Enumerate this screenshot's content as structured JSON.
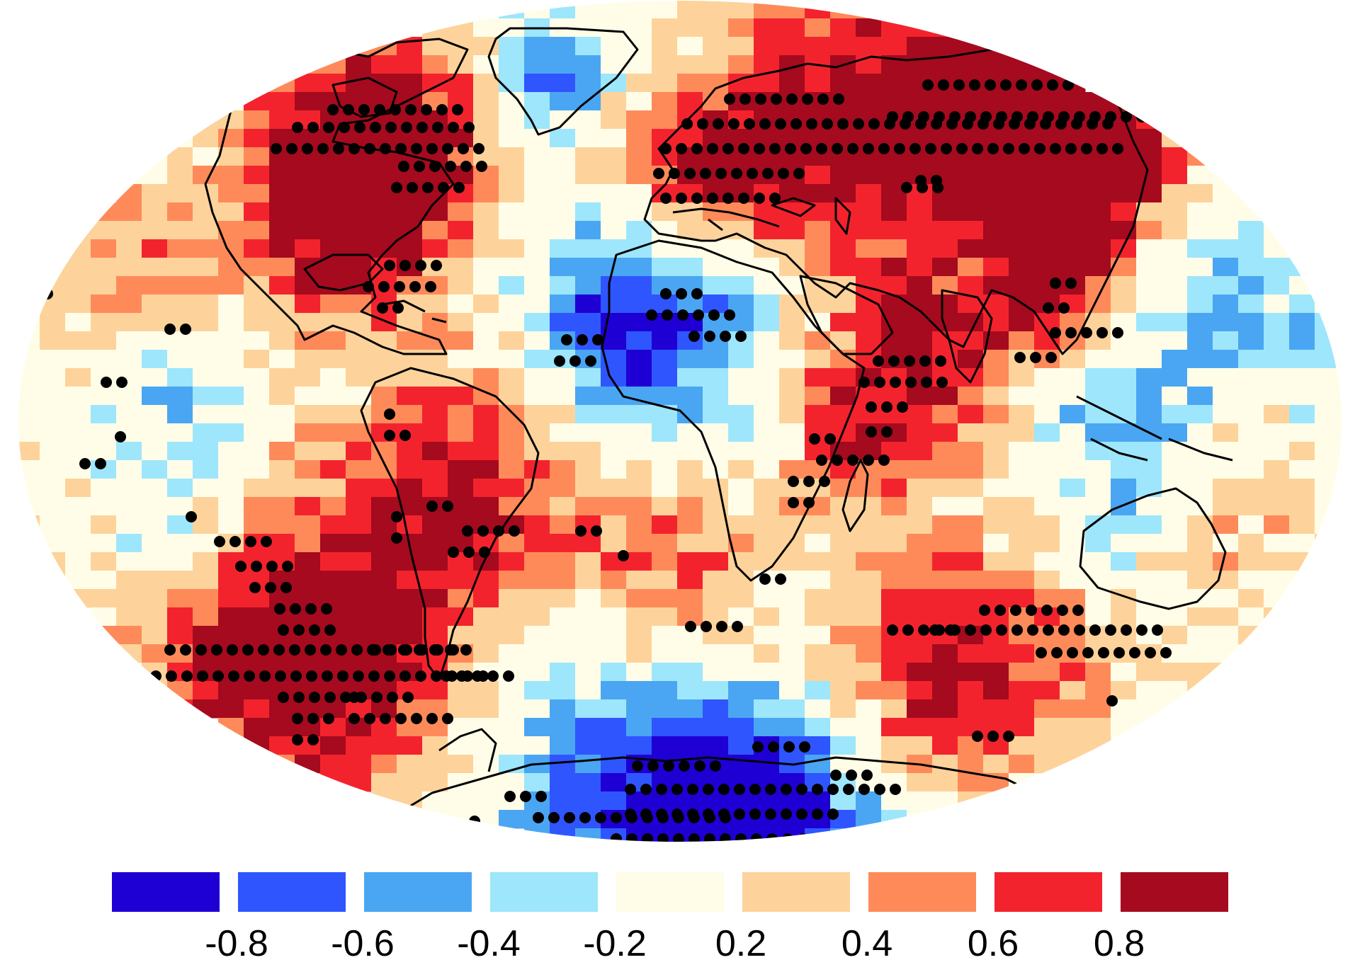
{
  "legend": {
    "colors": [
      "#1f00d4",
      "#2f55ff",
      "#4aa6f2",
      "#9ee6fb",
      "#fffde8",
      "#fdd39b",
      "#fe8a5a",
      "#f3232d",
      "#a50a1e"
    ],
    "tick_labels": [
      "-0.8",
      "-0.6",
      "-0.4",
      "-0.2",
      "0.2",
      "0.4",
      "0.6",
      "0.8"
    ],
    "tick_values": [
      -0.8,
      -0.6,
      -0.4,
      -0.2,
      0.2,
      0.4,
      0.6,
      0.8
    ]
  },
  "map": {
    "projection": "Winkel-tripel-like elliptical world map",
    "field": "gridded correlation coefficient",
    "value_range": [
      -1,
      1
    ],
    "significance_marker": "black dot",
    "regions": [
      {
        "area": "northern North America",
        "correlation": 0.6,
        "significant": true
      },
      {
        "area": "central North America",
        "correlation": 0.5,
        "significant": true
      },
      {
        "area": "Greenland",
        "correlation": -0.6,
        "significant": true
      },
      {
        "area": "northern Europe and Siberia",
        "correlation": 0.7,
        "significant": true
      },
      {
        "area": "Sahara and West Africa",
        "correlation": -0.6,
        "significant": true
      },
      {
        "area": "East Africa",
        "correlation": 0.7,
        "significant": true
      },
      {
        "area": "South and Southeast Asia",
        "correlation": 0.6,
        "significant": true
      },
      {
        "area": "Maritime Continent",
        "correlation": -0.3,
        "significant": false
      },
      {
        "area": "Australia",
        "correlation": -0.3,
        "significant": false
      },
      {
        "area": "South America",
        "correlation": 0.5,
        "significant": true
      },
      {
        "area": "southern Pacific mid-latitudes",
        "correlation": 0.6,
        "significant": true
      },
      {
        "area": "southern Indian Ocean mid-latitudes",
        "correlation": 0.6,
        "significant": true
      },
      {
        "area": "Antarctica",
        "correlation": -0.6,
        "significant": true
      }
    ]
  }
}
